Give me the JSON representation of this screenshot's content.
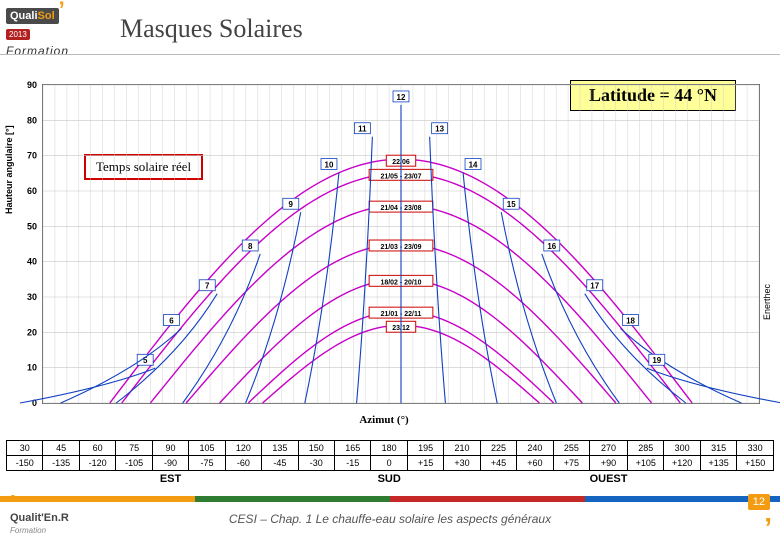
{
  "logo": {
    "brand": "Quali",
    "brand2": "Sol",
    "year": "2013",
    "sub": "Formation"
  },
  "title": "Masques Solaires",
  "latitude_label": "Latitude = 44 °N",
  "temps_label": "Temps solaire réel",
  "ylabel": "Hauteur angulaire [°]",
  "azimut_label": "Azimut (°)",
  "source": "Enerthec",
  "chart": {
    "type": "solar-path",
    "background_color": "#ffffff",
    "border_color": "#666666",
    "grid_color": "#c8c8c8",
    "sun_curve_color": "#c800c8",
    "hour_curve_color": "#1040c0",
    "date_tag_border": "#c00000",
    "date_tag_bg": "#ffffff",
    "y_ticks": [
      0,
      10,
      20,
      30,
      40,
      50,
      60,
      70,
      80,
      90
    ],
    "x_range": [
      -150,
      150
    ],
    "x_step_minor": 5,
    "hours": [
      5,
      6,
      7,
      8,
      9,
      10,
      11,
      12,
      13,
      14,
      15,
      16,
      17,
      18,
      19
    ],
    "sun_dates": [
      "22/06",
      "21/05 - 23/07",
      "21/04 - 23/08",
      "21/03 - 23/09",
      "18/02 - 20/10",
      "21/01 - 22/11",
      "23/12"
    ],
    "sun_peaks": [
      69,
      65,
      56,
      45,
      35,
      26,
      22
    ],
    "sun_widths": [
      122,
      117,
      105,
      90,
      76,
      64,
      58
    ],
    "hour_pos": {
      "5": [
        -103,
        35
      ],
      "6": [
        -92,
        75
      ],
      "7": [
        -77,
        110
      ],
      "8": [
        -59,
        150
      ],
      "9": [
        -42,
        192
      ],
      "10": [
        -26,
        232
      ],
      "11": [
        -12,
        268
      ],
      "12": [
        0,
        300
      ],
      "13": [
        12,
        268
      ],
      "14": [
        26,
        232
      ],
      "15": [
        42,
        192
      ],
      "16": [
        59,
        150
      ],
      "17": [
        77,
        110
      ],
      "18": [
        92,
        75
      ],
      "19": [
        103,
        35
      ]
    }
  },
  "azimuth_table": {
    "row1": [
      "30",
      "45",
      "60",
      "75",
      "90",
      "105",
      "120",
      "135",
      "150",
      "165",
      "180",
      "195",
      "210",
      "225",
      "240",
      "255",
      "270",
      "285",
      "300",
      "315",
      "330"
    ],
    "row2": [
      "-150",
      "-135",
      "-120",
      "-105",
      "-90",
      "-75",
      "-60",
      "-45",
      "-30",
      "-15",
      "0",
      "+15",
      "+30",
      "+45",
      "+60",
      "+75",
      "+90",
      "+105",
      "+120",
      "+135",
      "+150"
    ],
    "dirs": {
      "EST": 4,
      "SUD": 10,
      "OUEST": 16
    }
  },
  "footer": {
    "text": "CESI –  Chap. 1 Le chauffe-eau solaire les aspects généraux",
    "page": "12",
    "logo": "Qualit'En.R",
    "logo_sub": "Formation",
    "stripe_colors": [
      "#f39c12",
      "#2e7d32",
      "#c62828",
      "#1565c0"
    ]
  }
}
